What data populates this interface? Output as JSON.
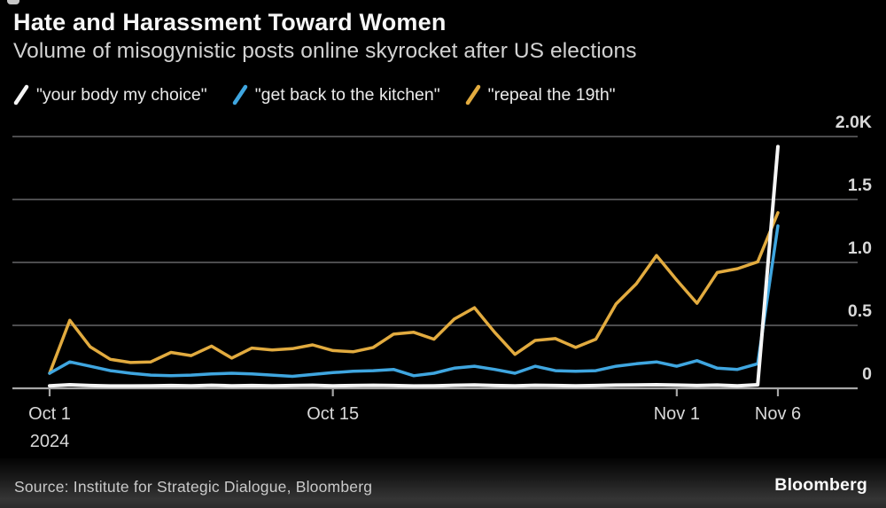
{
  "footer": {
    "source": "Source: Institute for Strategic Dialogue, Bloomberg",
    "brand": "Bloomberg"
  },
  "chart_data": {
    "type": "line",
    "title": "Hate and Harassment Toward Women",
    "subtitle": "Volume of misogynistic posts online skyrocket after US elections",
    "ylim": [
      0,
      2000
    ],
    "grid": "horizontal",
    "legend_position": "top",
    "x": [
      "Oct 1",
      "Oct 2",
      "Oct 3",
      "Oct 4",
      "Oct 5",
      "Oct 6",
      "Oct 7",
      "Oct 8",
      "Oct 9",
      "Oct 10",
      "Oct 11",
      "Oct 12",
      "Oct 13",
      "Oct 14",
      "Oct 15",
      "Oct 16",
      "Oct 17",
      "Oct 18",
      "Oct 19",
      "Oct 20",
      "Oct 21",
      "Oct 22",
      "Oct 23",
      "Oct 24",
      "Oct 25",
      "Oct 26",
      "Oct 27",
      "Oct 28",
      "Oct 29",
      "Oct 30",
      "Oct 31",
      "Nov 1",
      "Nov 2",
      "Nov 3",
      "Nov 4",
      "Nov 5",
      "Nov 6"
    ],
    "series": [
      {
        "name": "\"your body my choice\"",
        "color": "#f5f5f5",
        "values": [
          20,
          28,
          22,
          18,
          18,
          20,
          22,
          20,
          24,
          20,
          22,
          20,
          22,
          24,
          20,
          22,
          24,
          22,
          18,
          20,
          24,
          26,
          22,
          20,
          24,
          22,
          20,
          22,
          25,
          26,
          28,
          25,
          22,
          25,
          20,
          28,
          1920
        ]
      },
      {
        "name": "\"get back to the kitchen\"",
        "color": "#3fa6e0",
        "values": [
          120,
          210,
          175,
          140,
          120,
          105,
          100,
          105,
          115,
          120,
          115,
          105,
          95,
          110,
          125,
          135,
          140,
          150,
          100,
          120,
          160,
          175,
          150,
          120,
          175,
          140,
          135,
          140,
          175,
          195,
          210,
          175,
          220,
          160,
          150,
          195,
          1290
        ]
      },
      {
        "name": "\"repeal the 19th\"",
        "color": "#e2ab3f",
        "values": [
          120,
          540,
          330,
          230,
          205,
          210,
          285,
          260,
          335,
          240,
          320,
          305,
          315,
          345,
          300,
          290,
          325,
          430,
          445,
          390,
          550,
          640,
          445,
          270,
          380,
          395,
          325,
          390,
          670,
          830,
          1055,
          860,
          675,
          920,
          950,
          1005,
          1395
        ]
      }
    ],
    "y_ticks": [
      {
        "label": "2.0K",
        "value": 2000
      },
      {
        "label": "1.5",
        "value": 1500
      },
      {
        "label": "1.0",
        "value": 1000
      },
      {
        "label": "0.5",
        "value": 500
      },
      {
        "label": "0",
        "value": 0
      }
    ],
    "x_ticks": [
      {
        "label": "Oct 1",
        "sublabel": "2024",
        "index": 0
      },
      {
        "label": "Oct 15",
        "index": 14
      },
      {
        "label": "Nov 1",
        "index": 31
      },
      {
        "label": "Nov 6",
        "index": 36
      }
    ]
  }
}
